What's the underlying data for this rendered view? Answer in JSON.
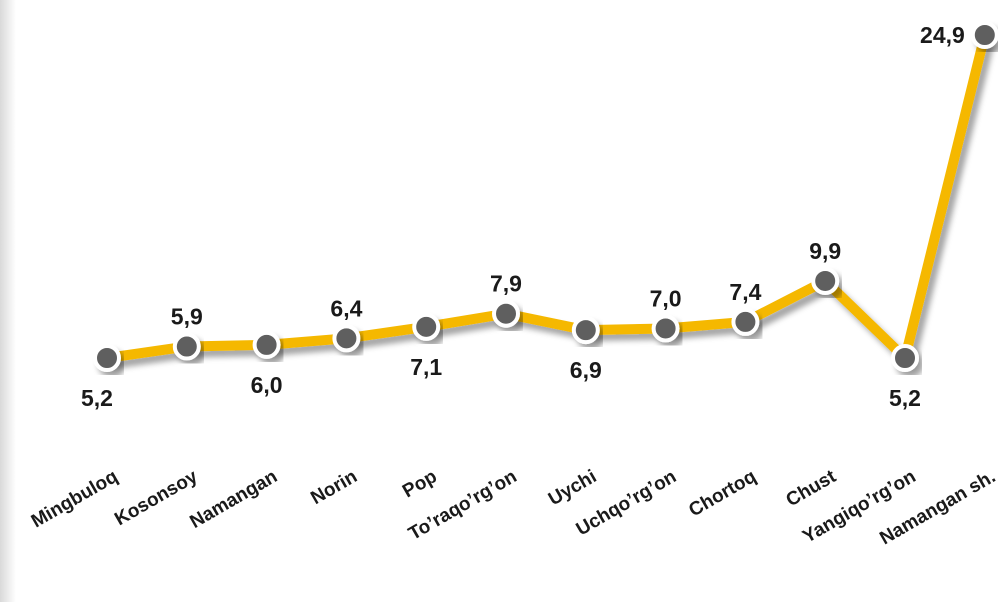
{
  "chart_data": {
    "type": "line",
    "categories": [
      "Mingbuloq",
      "Kosonsoy",
      "Namangan",
      "Norin",
      "Pop",
      "To’raqo’rg’on",
      "Uychi",
      "Uchqo’rg’on",
      "Chortoq",
      "Chust",
      "Yangiqo’rg’on",
      "Namangan sh."
    ],
    "values": [
      5.2,
      5.9,
      6.0,
      6.4,
      7.1,
      7.9,
      6.9,
      7.0,
      7.4,
      9.9,
      5.2,
      24.9
    ],
    "value_labels": [
      "5,2",
      "5,9",
      "6,0",
      "6,4",
      "7,1",
      "7,9",
      "6,9",
      "7,0",
      "7,4",
      "9,9",
      "5,2",
      "24,9"
    ],
    "label_positions": [
      "below",
      "above",
      "below",
      "above",
      "below",
      "above",
      "below",
      "above",
      "above",
      "above",
      "below",
      "left"
    ],
    "colors": {
      "line": "#f5b800",
      "marker": "#5f5f5f",
      "marker_ring": "#ffffff"
    },
    "grid": false,
    "legend": "none"
  }
}
